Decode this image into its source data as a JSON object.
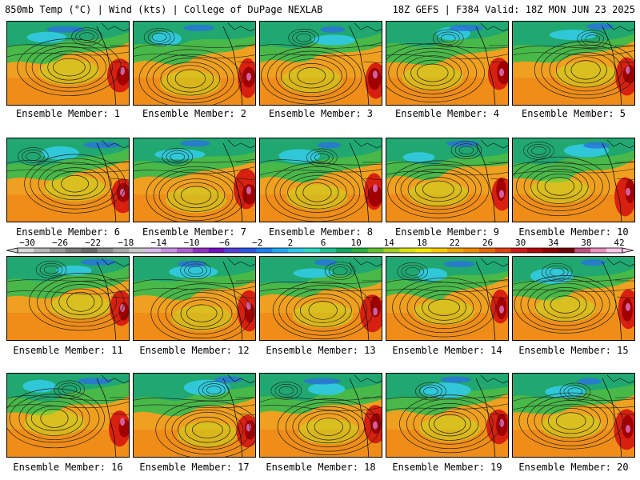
{
  "header": {
    "left": "850mb Temp (°C) | Wind (kts) | College of DuPage NEXLAB",
    "right": "18Z GEFS | F384 Valid: 18Z MON JUN 23 2025"
  },
  "panels": [
    {
      "caption": "Ensemble Member: 1"
    },
    {
      "caption": "Ensemble Member: 2"
    },
    {
      "caption": "Ensemble Member: 3"
    },
    {
      "caption": "Ensemble Member: 4"
    },
    {
      "caption": "Ensemble Member: 5"
    },
    {
      "caption": "Ensemble Member: 6"
    },
    {
      "caption": "Ensemble Member: 7"
    },
    {
      "caption": "Ensemble Member: 8"
    },
    {
      "caption": "Ensemble Member: 9"
    },
    {
      "caption": "Ensemble Member: 10"
    },
    {
      "caption": "Ensemble Member: 11"
    },
    {
      "caption": "Ensemble Member: 12"
    },
    {
      "caption": "Ensemble Member: 13"
    },
    {
      "caption": "Ensemble Member: 14"
    },
    {
      "caption": "Ensemble Member: 15"
    },
    {
      "caption": "Ensemble Member: 16"
    },
    {
      "caption": "Ensemble Member: 17"
    },
    {
      "caption": "Ensemble Member: 18"
    },
    {
      "caption": "Ensemble Member: 19"
    },
    {
      "caption": "Ensemble Member: 20"
    }
  ],
  "colorbar": {
    "labels": [
      "−30",
      "−26",
      "−22",
      "−18",
      "−14",
      "−10",
      "−6",
      "−2",
      "2",
      "6",
      "10",
      "14",
      "18",
      "22",
      "26",
      "30",
      "34",
      "38",
      "42"
    ],
    "colors": [
      "#d8d8d8",
      "#b8b8b8",
      "#9a9a9a",
      "#7c7c7c",
      "#6a6a6a",
      "#8c8c8c",
      "#a8a8a8",
      "#c8c8c8",
      "#d8b8e8",
      "#c890e0",
      "#b060d0",
      "#9030c0",
      "#7010c0",
      "#5040d8",
      "#2a55e8",
      "#1a80f0",
      "#20a8f0",
      "#30c8e8",
      "#30d8c0",
      "#20c090",
      "#10a860",
      "#28b040",
      "#60c030",
      "#a0d020",
      "#d8e010",
      "#f8e800",
      "#f8c800",
      "#f0a800",
      "#f08800",
      "#e86808",
      "#e04010",
      "#d01818",
      "#b00808",
      "#900000",
      "#700000",
      "#c05080",
      "#e890c0",
      "#f8c8e8"
    ]
  }
}
